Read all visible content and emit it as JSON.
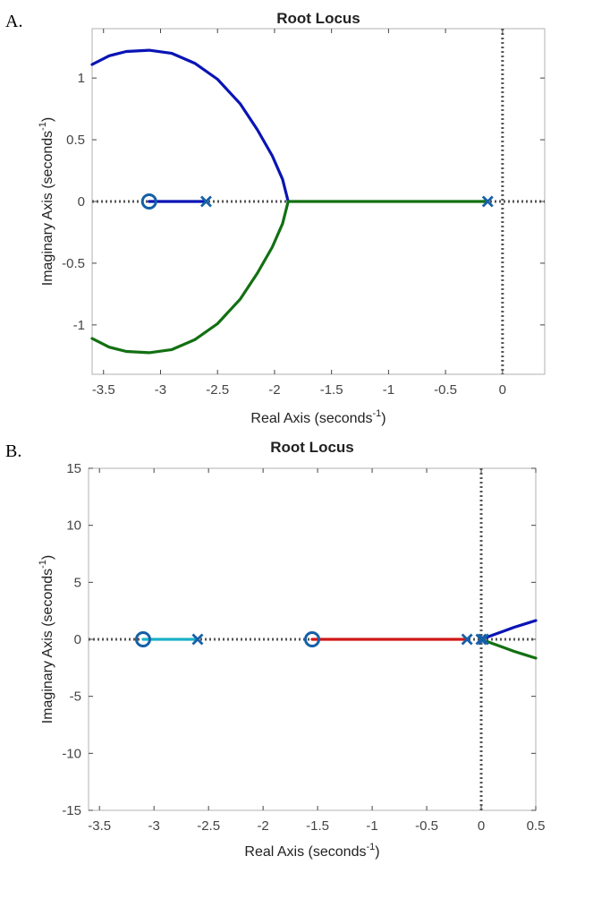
{
  "chart_data": [
    {
      "panel_label": "A.",
      "type": "line",
      "title": "Root Locus",
      "xlabel": "Real Axis (seconds",
      "ylabel": "Imaginary Axis (seconds",
      "label_superscript": "-1",
      "label_suffix": ")",
      "xlim": [
        -3.6,
        0.37
      ],
      "ylim": [
        -1.4,
        1.4
      ],
      "xticks": [
        -3.5,
        -3,
        -2.5,
        -2,
        -1.5,
        -1,
        -0.5,
        0
      ],
      "xtick_labels": [
        "-3.5",
        "-3",
        "-2.5",
        "-2",
        "-1.5",
        "-1",
        "-0.5",
        "0"
      ],
      "yticks": [
        -1,
        -0.5,
        0,
        0.5,
        1
      ],
      "ytick_labels": [
        "-1",
        "-0.5",
        "0",
        "0.5",
        "1"
      ],
      "zeros": [
        [
          -3.1,
          0
        ]
      ],
      "poles": [
        [
          -2.6,
          0
        ],
        [
          -0.13,
          0
        ]
      ],
      "series": [
        {
          "color": "#0a14b4",
          "x": [
            -3.1,
            -2.6
          ],
          "y": [
            0,
            0
          ]
        },
        {
          "color": "#0a14b4",
          "x": [
            -3.6,
            -3.45,
            -3.3,
            -3.1,
            -2.9,
            -2.7,
            -2.5,
            -2.3,
            -2.15,
            -2.02,
            -1.93,
            -1.88
          ],
          "y": [
            1.11,
            1.18,
            1.215,
            1.225,
            1.2,
            1.12,
            0.99,
            0.79,
            0.58,
            0.37,
            0.18,
            0
          ]
        },
        {
          "color": "#127012",
          "x": [
            -1.88,
            -0.13
          ],
          "y": [
            0,
            0
          ]
        },
        {
          "color": "#127012",
          "x": [
            -1.88,
            -1.93,
            -2.02,
            -2.15,
            -2.3,
            -2.5,
            -2.7,
            -2.9,
            -3.1,
            -3.3,
            -3.45,
            -3.6
          ],
          "y": [
            0,
            -0.18,
            -0.37,
            -0.58,
            -0.79,
            -0.99,
            -1.12,
            -1.2,
            -1.225,
            -1.215,
            -1.18,
            -1.11
          ]
        }
      ],
      "grid": false
    },
    {
      "panel_label": "B.",
      "type": "line",
      "title": "Root Locus",
      "xlabel": "Real Axis (seconds",
      "ylabel": "Imaginary Axis (seconds",
      "label_superscript": "-1",
      "label_suffix": ")",
      "xlim": [
        -3.6,
        0.5
      ],
      "ylim": [
        -15,
        15
      ],
      "xticks": [
        -3.5,
        -3,
        -2.5,
        -2,
        -1.5,
        -1,
        -0.5,
        0,
        0.5
      ],
      "xtick_labels": [
        "-3.5",
        "-3",
        "-2.5",
        "-2",
        "-1.5",
        "-1",
        "-0.5",
        "0",
        "0.5"
      ],
      "yticks": [
        -15,
        -10,
        -5,
        0,
        5,
        10,
        15
      ],
      "ytick_labels": [
        "-15",
        "-10",
        "-5",
        "0",
        "5",
        "10",
        "15"
      ],
      "zeros": [
        [
          -3.1,
          0
        ],
        [
          -1.55,
          0
        ]
      ],
      "poles": [
        [
          -2.6,
          0
        ],
        [
          -0.13,
          0
        ],
        [
          0,
          0
        ],
        [
          0.02,
          0
        ]
      ],
      "series": [
        {
          "color": "#1ab0c8",
          "x": [
            -3.1,
            -2.6
          ],
          "y": [
            0,
            0
          ]
        },
        {
          "color": "#d01818",
          "x": [
            -1.55,
            -0.13
          ],
          "y": [
            0,
            0
          ]
        },
        {
          "color": "#0a14b4",
          "x": [
            0,
            0.1,
            0.2,
            0.3,
            0.4,
            0.5
          ],
          "y": [
            0,
            0.35,
            0.7,
            1.05,
            1.35,
            1.65
          ]
        },
        {
          "color": "#127012",
          "x": [
            0,
            0.1,
            0.2,
            0.3,
            0.4,
            0.5
          ],
          "y": [
            0,
            -0.35,
            -0.7,
            -1.05,
            -1.35,
            -1.65
          ]
        }
      ],
      "grid": false
    }
  ]
}
